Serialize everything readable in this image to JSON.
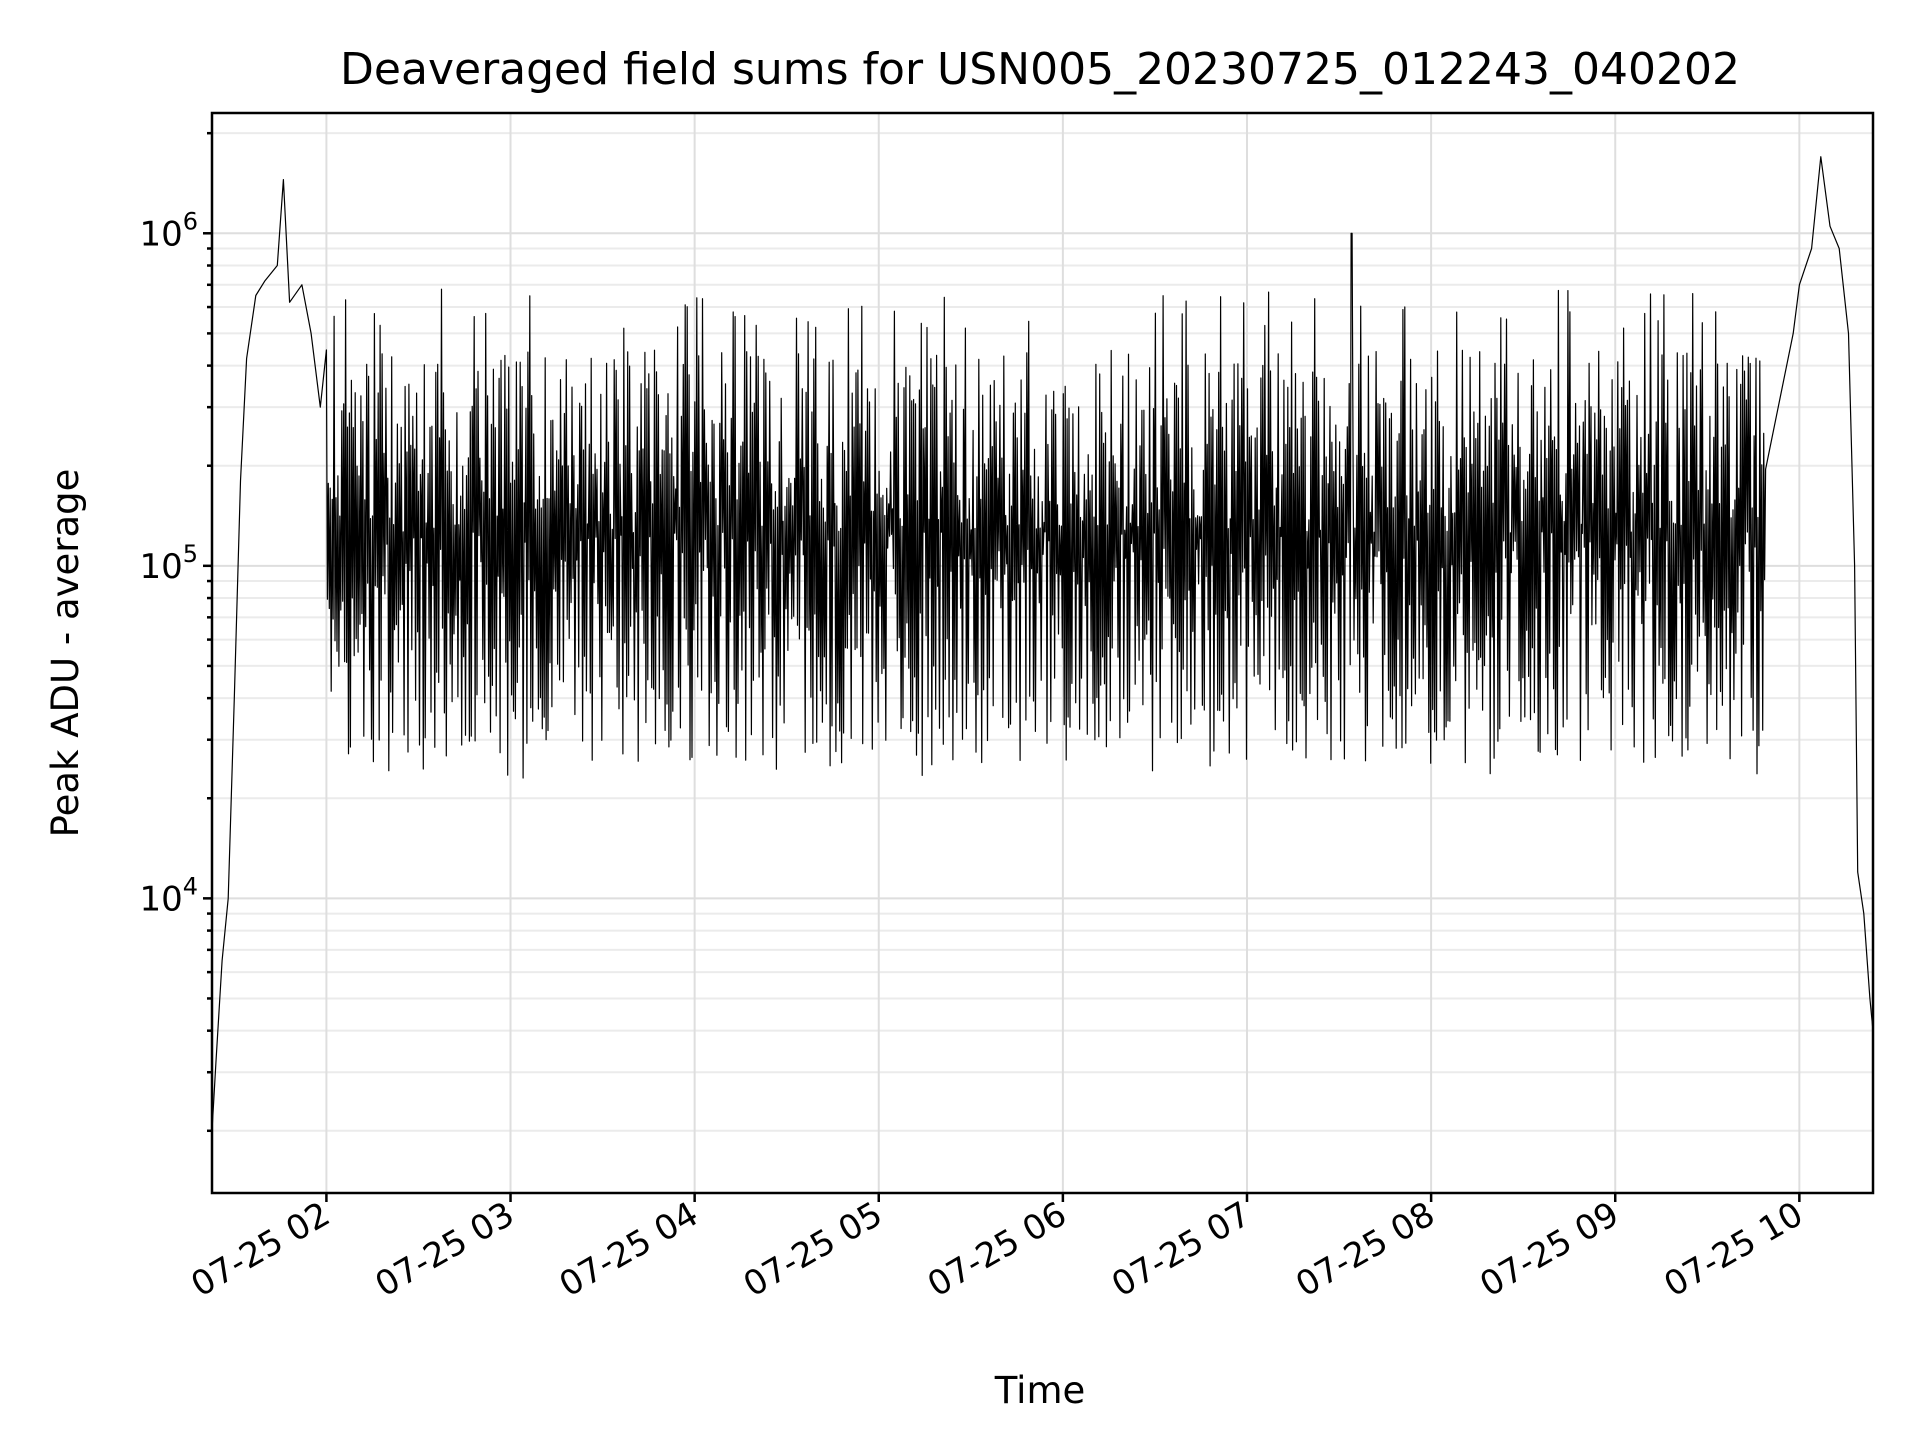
{
  "chart_data": {
    "type": "line",
    "title": "Deaveraged field sums for USN005_20230725_012243_040202",
    "xlabel": "Time",
    "ylabel": "Peak ADU - average",
    "yscale": "log",
    "grid": true,
    "xlim": [
      "2023-07-25 01:22:43",
      "2023-07-25 10:24:00"
    ],
    "ylim": [
      1300,
      2300000
    ],
    "x_ticks": [
      {
        "value": "2023-07-25 02:00",
        "label": "07-25 02"
      },
      {
        "value": "2023-07-25 03:00",
        "label": "07-25 03"
      },
      {
        "value": "2023-07-25 04:00",
        "label": "07-25 04"
      },
      {
        "value": "2023-07-25 05:00",
        "label": "07-25 05"
      },
      {
        "value": "2023-07-25 06:00",
        "label": "07-25 06"
      },
      {
        "value": "2023-07-25 07:00",
        "label": "07-25 07"
      },
      {
        "value": "2023-07-25 08:00",
        "label": "07-25 08"
      },
      {
        "value": "2023-07-25 09:00",
        "label": "07-25 09"
      },
      {
        "value": "2023-07-25 10:00",
        "label": "07-25 10"
      }
    ],
    "y_ticks": [
      {
        "value": 10000,
        "base": "10",
        "exp": "4"
      },
      {
        "value": 100000,
        "base": "10",
        "exp": "5"
      },
      {
        "value": 1000000,
        "base": "10",
        "exp": "6"
      }
    ],
    "series": [
      {
        "color": "#000000",
        "points": [
          [
            "2023-07-25 01:22:43",
            2000
          ],
          [
            "2023-07-25 01:24",
            3200
          ],
          [
            "2023-07-25 01:26",
            6500
          ],
          [
            "2023-07-25 01:28",
            10000
          ],
          [
            "2023-07-25 01:30",
            40000
          ],
          [
            "2023-07-25 01:32",
            180000
          ],
          [
            "2023-07-25 01:34",
            420000
          ],
          [
            "2023-07-25 01:37",
            650000
          ],
          [
            "2023-07-25 01:40",
            720000
          ],
          [
            "2023-07-25 01:44",
            800000
          ],
          [
            "2023-07-25 01:46",
            1450000
          ],
          [
            "2023-07-25 01:48",
            620000
          ],
          [
            "2023-07-25 01:52",
            700000
          ],
          [
            "2023-07-25 01:55",
            500000
          ],
          [
            "2023-07-25 01:58",
            300000
          ],
          [
            "2023-07-25 02:00",
            150000
          ],
          [
            "2023-07-25 02:10",
            200000
          ],
          [
            "2023-07-25 06:00",
            160000
          ],
          [
            "2023-07-25 07:34",
            1000000
          ],
          [
            "2023-07-25 09:45",
            250000
          ],
          [
            "2023-07-25 09:58",
            500000
          ],
          [
            "2023-07-25 10:00",
            700000
          ],
          [
            "2023-07-25 10:04",
            900000
          ],
          [
            "2023-07-25 10:07",
            1700000
          ],
          [
            "2023-07-25 10:10",
            1050000
          ],
          [
            "2023-07-25 10:13",
            900000
          ],
          [
            "2023-07-25 10:16",
            500000
          ],
          [
            "2023-07-25 10:18",
            100000
          ],
          [
            "2023-07-25 10:19",
            12000
          ],
          [
            "2023-07-25 10:21",
            9000
          ],
          [
            "2023-07-25 10:23",
            5000
          ],
          [
            "2023-07-25 10:24",
            4000
          ]
        ],
        "envelope": {
          "range": [
            "2023-07-25 02:00",
            "2023-07-25 09:49"
          ],
          "upper_typical": 500000,
          "lower_typical": 40000,
          "upper_max": 680000,
          "lower_min": 23000
        }
      }
    ]
  }
}
